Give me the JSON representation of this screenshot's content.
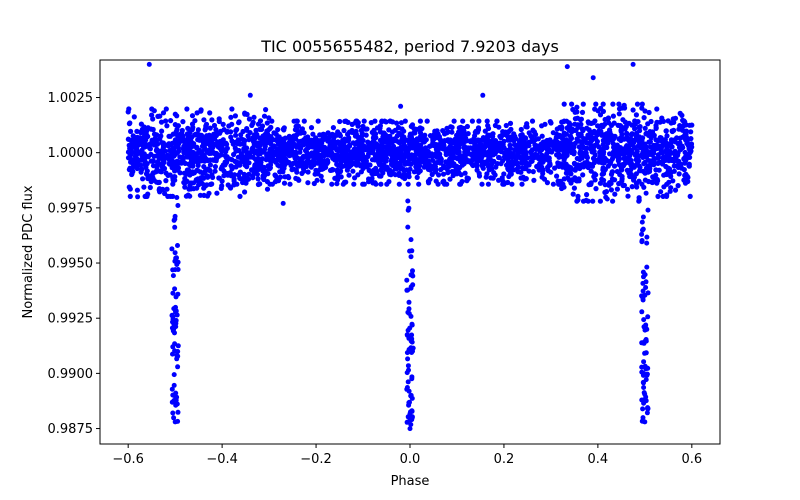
{
  "chart_data": {
    "type": "scatter",
    "title": "TIC 0055655482, period 7.9203 days",
    "xlabel": "Phase",
    "ylabel": "Normalized PDC flux",
    "xlim": [
      -0.66,
      0.66
    ],
    "ylim": [
      0.9868,
      1.0042
    ],
    "grid": false,
    "marker_color": "#0000ff",
    "x_ticks": [
      -0.6,
      -0.4,
      -0.2,
      0.0,
      0.2,
      0.4,
      0.6
    ],
    "x_tick_labels": [
      "−0.6",
      "−0.4",
      "−0.2",
      "0.0",
      "0.2",
      "0.4",
      "0.6"
    ],
    "y_ticks": [
      0.9875,
      0.99,
      0.9925,
      0.995,
      0.9975,
      1.0,
      1.0025
    ],
    "y_tick_labels": [
      "0.9875",
      "0.9900",
      "0.9925",
      "0.9950",
      "0.9975",
      "1.0000",
      "1.0025"
    ],
    "baseline": {
      "x_range": [
        -0.6,
        0.6
      ],
      "flux": 1.0,
      "scatter_segments": [
        {
          "x_from": -0.6,
          "x_to": -0.3,
          "sigma": 0.0009
        },
        {
          "x_from": -0.3,
          "x_to": 0.32,
          "sigma": 0.00065
        },
        {
          "x_from": 0.32,
          "x_to": 0.5,
          "sigma": 0.001
        },
        {
          "x_from": 0.5,
          "x_to": 0.6,
          "sigma": 0.0009
        }
      ]
    },
    "eclipses": [
      {
        "phase": -0.5,
        "min_flux": 0.9878
      },
      {
        "phase": 0.0,
        "min_flux": 0.9875
      },
      {
        "phase": 0.5,
        "min_flux": 0.9878
      }
    ],
    "outliers": [
      {
        "x": -0.555,
        "y": 1.004
      },
      {
        "x": 0.335,
        "y": 1.0039
      },
      {
        "x": 0.39,
        "y": 1.0034
      },
      {
        "x": 0.475,
        "y": 1.004
      },
      {
        "x": -0.58,
        "y": 0.998
      },
      {
        "x": -0.27,
        "y": 0.9977
      },
      {
        "x": 0.42,
        "y": 0.9979
      },
      {
        "x": -0.02,
        "y": 1.0021
      },
      {
        "x": 0.155,
        "y": 1.0026
      },
      {
        "x": -0.34,
        "y": 1.0026
      }
    ]
  }
}
